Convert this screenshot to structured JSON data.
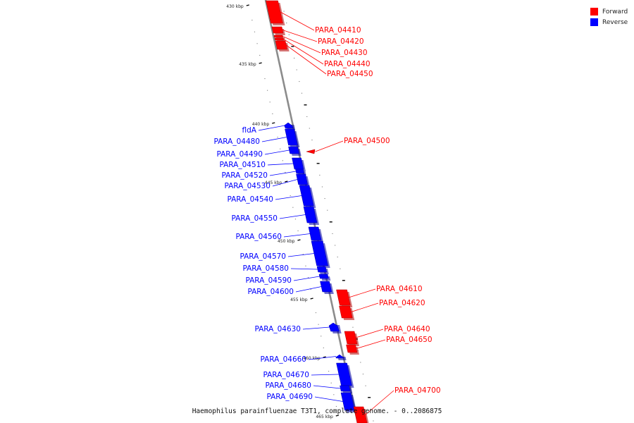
{
  "legend": {
    "forward_label": "Forward",
    "reverse_label": "Reverse",
    "forward_color": "#ff0000",
    "reverse_color": "#0000ff"
  },
  "caption": "Haemophilus parainfluenzae T3T1, complete genome. - 0..2086875",
  "ticks": [
    "430 kbp",
    "435 kbp",
    "440 kbp",
    "445 kbp",
    "450 kbp",
    "455 kbp",
    "460 kbp",
    "465 kbp"
  ],
  "genes": [
    {
      "name": "PARA_04410",
      "strand": "forward"
    },
    {
      "name": "PARA_04420",
      "strand": "forward"
    },
    {
      "name": "PARA_04430",
      "strand": "forward"
    },
    {
      "name": "PARA_04440",
      "strand": "forward"
    },
    {
      "name": "PARA_04450",
      "strand": "forward"
    },
    {
      "name": "fldA",
      "strand": "reverse"
    },
    {
      "name": "PARA_04480",
      "strand": "reverse"
    },
    {
      "name": "PARA_04490",
      "strand": "reverse"
    },
    {
      "name": "PARA_04500",
      "strand": "forward"
    },
    {
      "name": "PARA_04510",
      "strand": "reverse"
    },
    {
      "name": "PARA_04520",
      "strand": "reverse"
    },
    {
      "name": "PARA_04530",
      "strand": "reverse"
    },
    {
      "name": "PARA_04540",
      "strand": "reverse"
    },
    {
      "name": "PARA_04550",
      "strand": "reverse"
    },
    {
      "name": "PARA_04560",
      "strand": "reverse"
    },
    {
      "name": "PARA_04570",
      "strand": "reverse"
    },
    {
      "name": "PARA_04580",
      "strand": "reverse"
    },
    {
      "name": "PARA_04590",
      "strand": "reverse"
    },
    {
      "name": "PARA_04600",
      "strand": "reverse"
    },
    {
      "name": "PARA_04610",
      "strand": "forward"
    },
    {
      "name": "PARA_04620",
      "strand": "forward"
    },
    {
      "name": "PARA_04630",
      "strand": "reverse"
    },
    {
      "name": "PARA_04640",
      "strand": "forward"
    },
    {
      "name": "PARA_04650",
      "strand": "forward"
    },
    {
      "name": "PARA_04660",
      "strand": "reverse"
    },
    {
      "name": "PARA_04670",
      "strand": "reverse"
    },
    {
      "name": "PARA_04680",
      "strand": "reverse"
    },
    {
      "name": "PARA_04690",
      "strand": "reverse"
    },
    {
      "name": "PARA_04700",
      "strand": "forward"
    }
  ]
}
